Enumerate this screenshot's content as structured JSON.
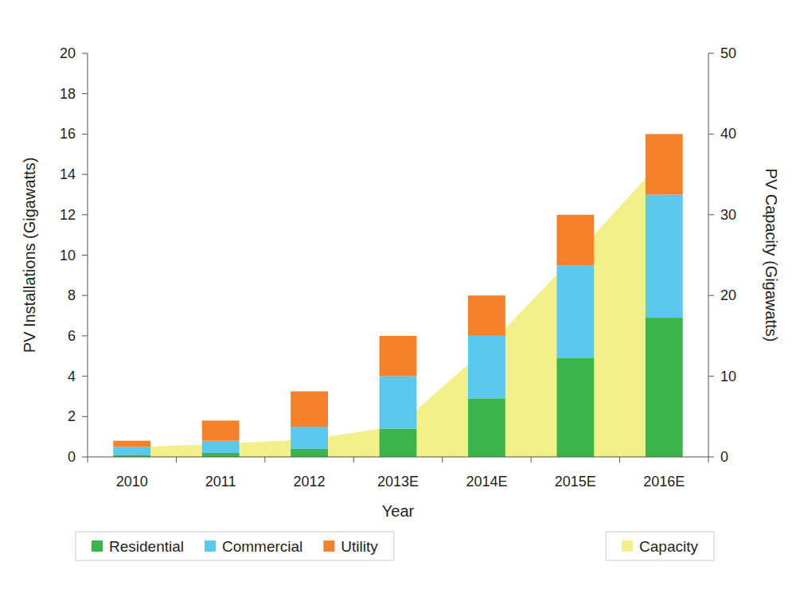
{
  "chart_data": {
    "type": "bar",
    "stacked": true,
    "x_label": "Year",
    "y_label": "PV Installations (Gigawatts)",
    "y2_label": "PV Capacity (Gigawatts)",
    "categories": [
      "2010",
      "2011",
      "2012",
      "2013E",
      "2014E",
      "2015E",
      "2016E"
    ],
    "series": [
      {
        "name": "Residential",
        "color": "#3bb54a",
        "values": [
          0.1,
          0.2,
          0.4,
          1.4,
          2.9,
          4.9,
          6.9
        ]
      },
      {
        "name": "Commercial",
        "color": "#5bc8f0",
        "values": [
          0.4,
          0.6,
          1.1,
          2.6,
          3.1,
          4.6,
          6.1
        ]
      },
      {
        "name": "Utility",
        "color": "#f5822a",
        "values": [
          0.3,
          1.0,
          1.75,
          2.0,
          2.0,
          2.5,
          3.0
        ]
      },
      {
        "name": "Capacity",
        "type": "area",
        "axis": "y2",
        "color": "#f3f08a",
        "values": [
          1.2,
          1.6,
          2.2,
          3.8,
          13.5,
          25,
          37
        ]
      }
    ],
    "ylim": [
      0,
      20
    ],
    "yticks": [
      0,
      2,
      4,
      6,
      8,
      10,
      12,
      14,
      16,
      18,
      20
    ],
    "y2lim": [
      0,
      50
    ],
    "y2ticks": [
      0,
      10,
      20,
      30,
      40,
      50
    ],
    "legend": "bottom",
    "grid": false
  }
}
